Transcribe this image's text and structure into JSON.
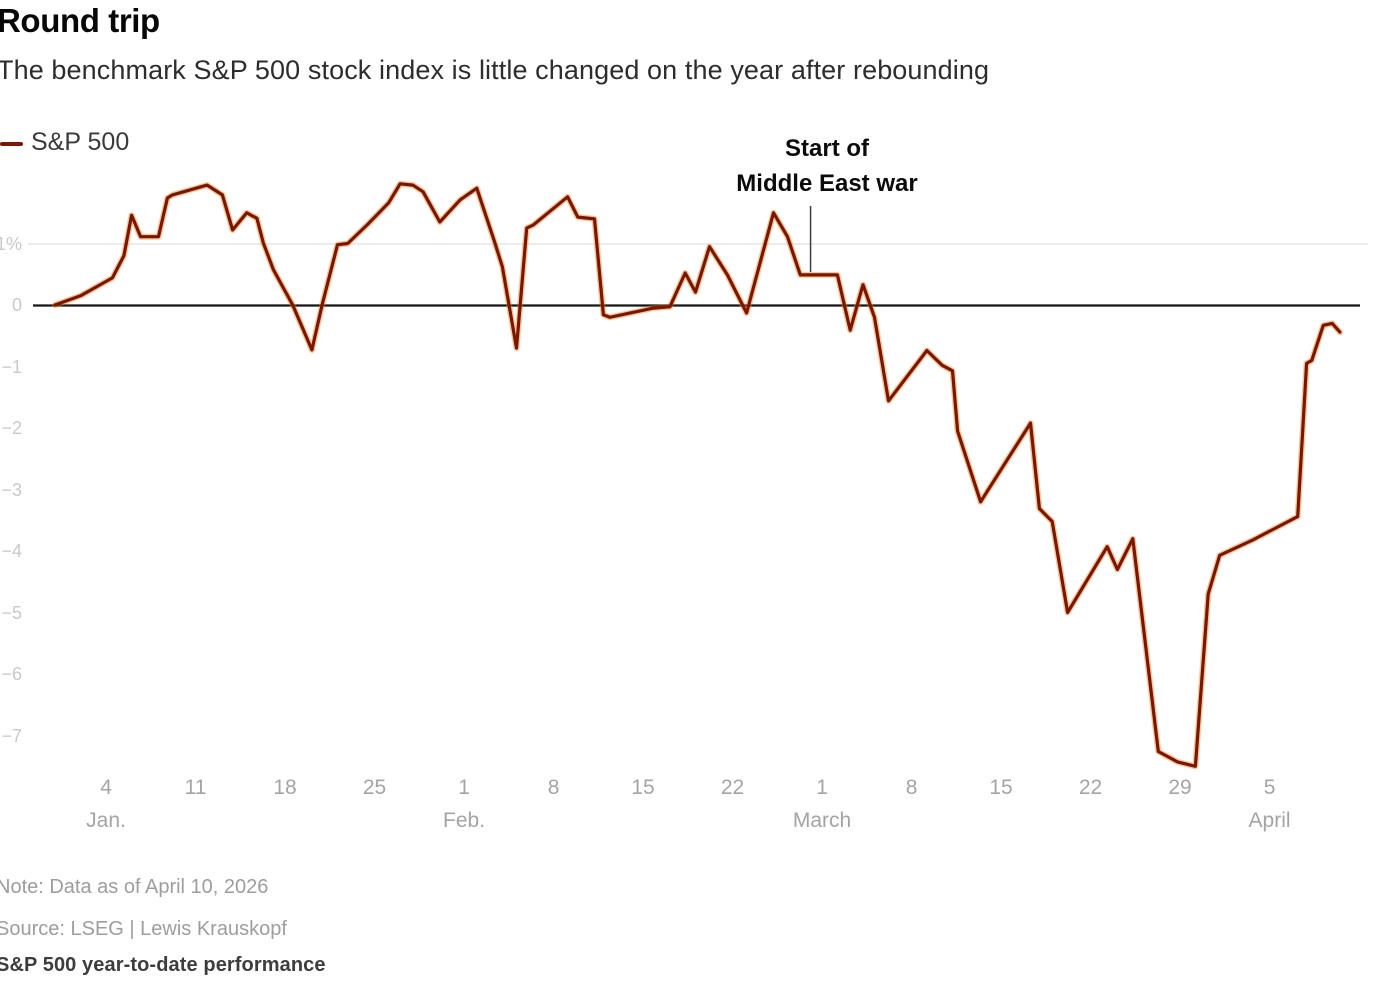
{
  "header": {
    "title": "Round trip",
    "subtitle": "The benchmark S&P 500 stock index is little changed on the year after rebounding"
  },
  "legend": {
    "label": "S&P 500"
  },
  "annotation": {
    "line1": "Start of",
    "line2": "Middle East war"
  },
  "footer": {
    "note": "Note: Data as of April 10, 2026",
    "source": "Source: LSEG | Lewis Krauskopf",
    "caption": "S&P 500 year-to-date performance"
  },
  "colors": {
    "line": "#7b1602",
    "line_glow": "#e87d14",
    "zero_line": "#161616",
    "gridline": "#ececec",
    "annotation_line": "#3d3d3d"
  },
  "chart_data": {
    "type": "line",
    "title": "Round trip",
    "subtitle": "The benchmark S&P 500 stock index is little changed on the year after rebounding",
    "ylabel_unit": "percent, year-to-date change",
    "x_description": "t = days since Dec 31; ticks are weekly dates Jan 4 - Apr 5, data through ~Apr 10, 2026",
    "ylim": [
      -7.8,
      2.2
    ],
    "xlim_t": [
      0,
      101
    ],
    "grid_pcts": [
      1
    ],
    "zero_line": true,
    "legend_position": "top-left",
    "annotation": {
      "t": 59.1,
      "text": "Start of Middle East war"
    },
    "x_ticks": [
      {
        "t": 4,
        "label": "4",
        "month": "Jan."
      },
      {
        "t": 11,
        "label": "11"
      },
      {
        "t": 18,
        "label": "18"
      },
      {
        "t": 25,
        "label": "25"
      },
      {
        "t": 32,
        "label": "1",
        "month": "Feb."
      },
      {
        "t": 39,
        "label": "8"
      },
      {
        "t": 46,
        "label": "15"
      },
      {
        "t": 53,
        "label": "22"
      },
      {
        "t": 60,
        "label": "1",
        "month": "March"
      },
      {
        "t": 67,
        "label": "8"
      },
      {
        "t": 74,
        "label": "15"
      },
      {
        "t": 81,
        "label": "22"
      },
      {
        "t": 88,
        "label": "29"
      },
      {
        "t": 95,
        "label": "5",
        "month": "April"
      }
    ],
    "y_ticks": [
      {
        "v": 1,
        "label": "1%"
      },
      {
        "v": 0,
        "label": "0"
      },
      {
        "v": -1,
        "label": "−1"
      },
      {
        "v": -2,
        "label": "−2"
      },
      {
        "v": -3,
        "label": "−3"
      },
      {
        "v": -4,
        "label": "−4"
      },
      {
        "v": -5,
        "label": "−5"
      },
      {
        "v": -6,
        "label": "−6"
      },
      {
        "v": -7,
        "label": "−7"
      }
    ],
    "series": [
      {
        "name": "S&P 500",
        "points": [
          [
            0,
            0.0
          ],
          [
            2,
            0.15
          ],
          [
            4.5,
            0.44
          ],
          [
            5.4,
            0.8
          ],
          [
            6.0,
            1.46
          ],
          [
            6.7,
            1.11
          ],
          [
            8.1,
            1.11
          ],
          [
            8.8,
            1.74
          ],
          [
            9.2,
            1.79
          ],
          [
            11.9,
            1.95
          ],
          [
            13.1,
            1.79
          ],
          [
            13.9,
            1.22
          ],
          [
            15.0,
            1.5
          ],
          [
            15.8,
            1.41
          ],
          [
            16.3,
            1.01
          ],
          [
            17.1,
            0.57
          ],
          [
            18.6,
            0.0
          ],
          [
            20.1,
            -0.73
          ],
          [
            20.9,
            0.0
          ],
          [
            22.1,
            0.98
          ],
          [
            22.9,
            1.0
          ],
          [
            24.4,
            1.3
          ],
          [
            26.1,
            1.66
          ],
          [
            27.0,
            1.97
          ],
          [
            28.0,
            1.95
          ],
          [
            28.8,
            1.84
          ],
          [
            30.1,
            1.35
          ],
          [
            31.7,
            1.71
          ],
          [
            33.0,
            1.9
          ],
          [
            34.4,
            1.02
          ],
          [
            35.0,
            0.62
          ],
          [
            36.1,
            -0.7
          ],
          [
            36.9,
            1.25
          ],
          [
            37.4,
            1.3
          ],
          [
            40.1,
            1.76
          ],
          [
            40.9,
            1.43
          ],
          [
            42.2,
            1.4
          ],
          [
            42.9,
            -0.16
          ],
          [
            43.4,
            -0.2
          ],
          [
            46.8,
            -0.05
          ],
          [
            48.1,
            -0.03
          ],
          [
            49.3,
            0.52
          ],
          [
            50.1,
            0.21
          ],
          [
            51.2,
            0.95
          ],
          [
            52.6,
            0.49
          ],
          [
            54.1,
            -0.13
          ],
          [
            56.2,
            1.5
          ],
          [
            57.3,
            1.11
          ],
          [
            58.3,
            0.49
          ],
          [
            61.2,
            0.49
          ],
          [
            62.2,
            -0.41
          ],
          [
            63.2,
            0.33
          ],
          [
            64.1,
            -0.2
          ],
          [
            65.2,
            -1.56
          ],
          [
            68.2,
            -0.74
          ],
          [
            69.4,
            -0.98
          ],
          [
            70.2,
            -1.07
          ],
          [
            70.6,
            -2.05
          ],
          [
            72.4,
            -3.2
          ],
          [
            76.3,
            -1.92
          ],
          [
            77.0,
            -3.31
          ],
          [
            78.0,
            -3.52
          ],
          [
            79.2,
            -5.0
          ],
          [
            82.3,
            -3.93
          ],
          [
            83.1,
            -4.3
          ],
          [
            84.3,
            -3.8
          ],
          [
            86.3,
            -7.26
          ],
          [
            87.8,
            -7.43
          ],
          [
            89.2,
            -7.5
          ],
          [
            90.2,
            -4.7
          ],
          [
            91.1,
            -4.07
          ],
          [
            93.7,
            -3.82
          ],
          [
            97.2,
            -3.44
          ],
          [
            97.9,
            -0.95
          ],
          [
            98.3,
            -0.9
          ],
          [
            99.2,
            -0.33
          ],
          [
            99.9,
            -0.3
          ],
          [
            100.5,
            -0.44
          ]
        ]
      }
    ]
  }
}
